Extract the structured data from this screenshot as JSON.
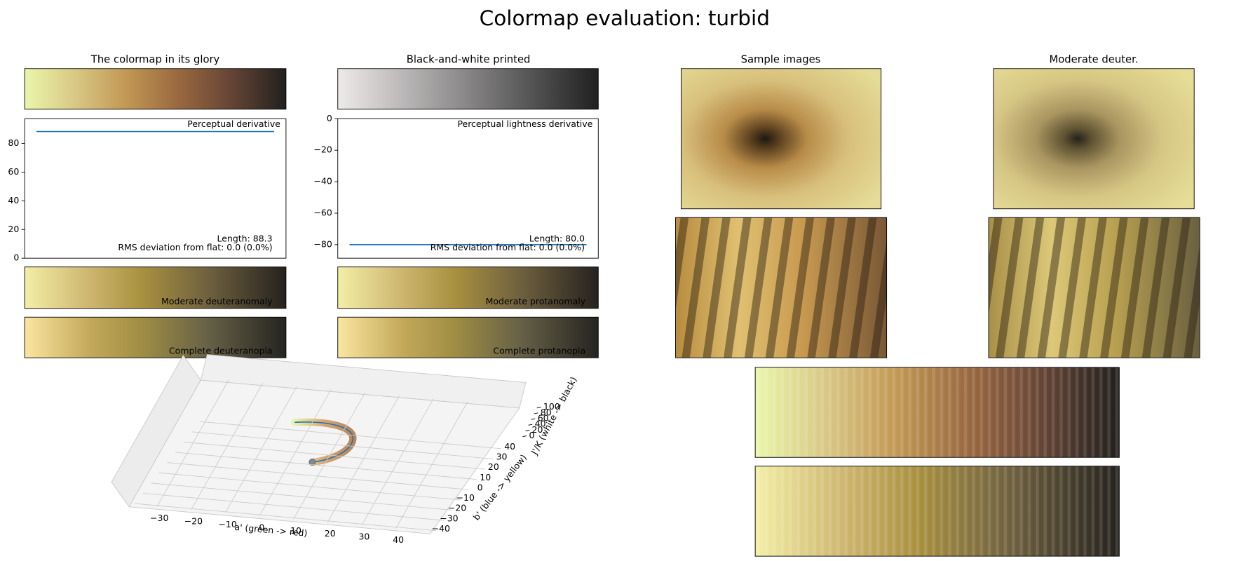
{
  "title": "Colormap evaluation: turbid",
  "panels": {
    "glory": "The colormap in its glory",
    "bw": "Black-and-white printed",
    "samples": "Sample images",
    "deuter": "Moderate deuter."
  },
  "strip_labels": {
    "deuteranomaly": "Moderate deuteranomaly",
    "deuteranopia": "Complete deuteranopia",
    "protanomaly": "Moderate protanomaly",
    "protanopia": "Complete protanopia"
  },
  "chart_data": [
    {
      "type": "line",
      "annotation": "Perceptual derivative",
      "length_label": "Length: 88.3",
      "rms_label": "RMS deviation from flat: 0.0 (0.0%)",
      "values": [
        88.3,
        88.3
      ],
      "color": "#1f77b4",
      "ylim": [
        0,
        97.2
      ],
      "yticks": [
        0,
        20,
        40,
        60,
        80
      ]
    },
    {
      "type": "line",
      "annotation": "Perceptual lightness derivative",
      "length_label": "Length: 80.0",
      "rms_label": "RMS deviation from flat: 0.0 (0.0%)",
      "values": [
        -80,
        -80
      ],
      "color": "#1f77b4",
      "ylim": [
        -88.6,
        0
      ],
      "yticks": [
        0,
        {
          "value": -20,
          "label": "−20"
        },
        {
          "value": -40,
          "label": "−40"
        },
        {
          "value": -60,
          "label": "−60"
        },
        {
          "value": -80,
          "label": "−80"
        }
      ]
    },
    {
      "type": "scatter3d",
      "xlabel": "a' (green -> red)",
      "ylabel": "b' (blue -> yellow)",
      "zlabel": "J'/K (white -> black)",
      "xlim": [
        -38,
        48
      ],
      "xticks": [
        {
          "value": -30,
          "label": "−30"
        },
        {
          "value": -20,
          "label": "−20"
        },
        {
          "value": -10,
          "label": "−10"
        },
        0,
        10,
        20,
        30,
        40
      ],
      "ylim": [
        -45,
        45
      ],
      "yticks": [
        {
          "value": -40,
          "label": "−40"
        },
        {
          "value": -30,
          "label": "−30"
        },
        {
          "value": -20,
          "label": "−20"
        },
        {
          "value": -10,
          "label": "−10"
        },
        0,
        10,
        20,
        30,
        40
      ],
      "zlim": [
        0,
        100
      ],
      "zticks": [
        0,
        20,
        40,
        60,
        80,
        100
      ]
    }
  ]
}
